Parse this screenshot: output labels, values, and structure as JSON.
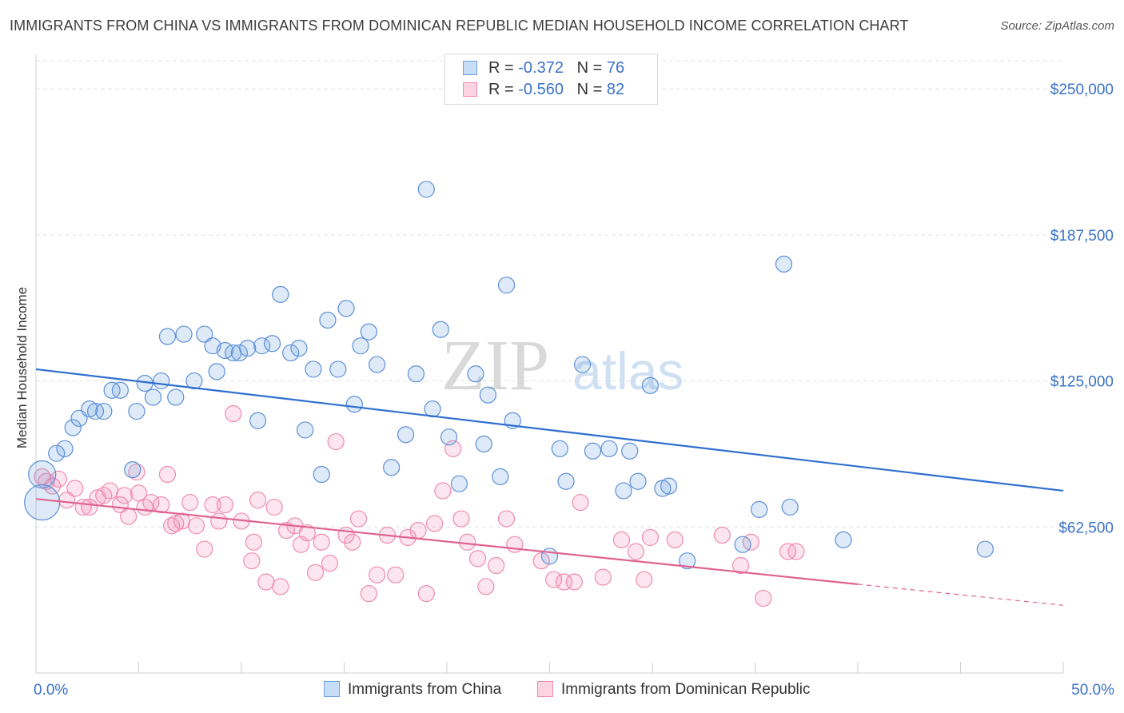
{
  "title": "IMMIGRANTS FROM CHINA VS IMMIGRANTS FROM DOMINICAN REPUBLIC MEDIAN HOUSEHOLD INCOME CORRELATION CHART",
  "source": "Source: ZipAtlas.com",
  "watermark": {
    "zip": "ZIP",
    "atlas": "atlas"
  },
  "legend": {
    "rows": [
      {
        "r_label": "R =",
        "r_value": "-0.372",
        "n_label": "N =",
        "n_value": "76"
      },
      {
        "r_label": "R =",
        "r_value": "-0.560",
        "n_label": "N =",
        "n_value": "82"
      }
    ]
  },
  "chart_data": {
    "type": "scatter",
    "xlabel": "",
    "ylabel": "Median Household Income",
    "xlim": [
      0,
      50
    ],
    "ylim": [
      0,
      262000
    ],
    "x_tick_labels": [
      "0.0%",
      "50.0%"
    ],
    "y_ticks": [
      62500,
      125000,
      187500,
      250000
    ],
    "y_tick_labels": [
      "$62,500",
      "$125,000",
      "$187,500",
      "$250,000"
    ],
    "grid": true,
    "legend_position": "top-center",
    "colors": {
      "china": "#6a9fe0",
      "dominican": "#f08ab0",
      "china_line": "#2f6fd0",
      "dominican_line": "#e0628f",
      "tick_text": "#3a72c8"
    },
    "series": [
      {
        "name": "Immigrants from China",
        "r": -0.372,
        "n": 76,
        "trend": {
          "x": [
            0,
            50
          ],
          "y": [
            130000,
            78000
          ]
        },
        "points": [
          [
            0.3,
            85000,
            17
          ],
          [
            0.3,
            73000,
            22
          ],
          [
            1.0,
            94000,
            10
          ],
          [
            1.4,
            96000,
            10
          ],
          [
            1.8,
            105000,
            10
          ],
          [
            2.1,
            109000,
            10
          ],
          [
            2.6,
            113000,
            10
          ],
          [
            2.9,
            112000,
            10
          ],
          [
            3.3,
            112000,
            10
          ],
          [
            3.7,
            121000,
            10
          ],
          [
            4.1,
            121000,
            10
          ],
          [
            4.7,
            87000,
            10
          ],
          [
            4.9,
            112000,
            10
          ],
          [
            5.3,
            124000,
            10
          ],
          [
            5.7,
            118000,
            10
          ],
          [
            6.1,
            125000,
            10
          ],
          [
            6.4,
            144000,
            10
          ],
          [
            6.8,
            118000,
            10
          ],
          [
            7.2,
            145000,
            10
          ],
          [
            7.7,
            125000,
            10
          ],
          [
            8.2,
            145000,
            10
          ],
          [
            8.6,
            140000,
            10
          ],
          [
            8.8,
            129000,
            10
          ],
          [
            9.2,
            138000,
            10
          ],
          [
            9.6,
            137000,
            10
          ],
          [
            9.9,
            137000,
            10
          ],
          [
            10.3,
            139000,
            10
          ],
          [
            10.8,
            108000,
            10
          ],
          [
            11.0,
            140000,
            10
          ],
          [
            11.5,
            141000,
            10
          ],
          [
            11.9,
            162000,
            10
          ],
          [
            12.4,
            137000,
            10
          ],
          [
            12.8,
            139000,
            10
          ],
          [
            13.1,
            104000,
            10
          ],
          [
            13.5,
            130000,
            10
          ],
          [
            13.9,
            85000,
            10
          ],
          [
            14.2,
            151000,
            10
          ],
          [
            14.7,
            130000,
            10
          ],
          [
            15.1,
            156000,
            10
          ],
          [
            15.5,
            115000,
            10
          ],
          [
            15.8,
            140000,
            10
          ],
          [
            16.2,
            146000,
            10
          ],
          [
            16.6,
            132000,
            10
          ],
          [
            17.3,
            88000,
            10
          ],
          [
            18.0,
            102000,
            10
          ],
          [
            18.5,
            128000,
            10
          ],
          [
            19.0,
            207000,
            10
          ],
          [
            19.3,
            113000,
            10
          ],
          [
            19.7,
            147000,
            10
          ],
          [
            20.1,
            101000,
            10
          ],
          [
            20.6,
            81000,
            10
          ],
          [
            21.4,
            128000,
            10
          ],
          [
            21.8,
            98000,
            10
          ],
          [
            22.0,
            119000,
            10
          ],
          [
            22.6,
            84000,
            10
          ],
          [
            22.9,
            166000,
            10
          ],
          [
            23.2,
            108000,
            10
          ],
          [
            25.0,
            50000,
            10
          ],
          [
            25.5,
            96000,
            10
          ],
          [
            25.8,
            82000,
            10
          ],
          [
            26.6,
            132000,
            10
          ],
          [
            27.1,
            95000,
            10
          ],
          [
            27.9,
            96000,
            10
          ],
          [
            28.6,
            78000,
            10
          ],
          [
            28.9,
            95000,
            10
          ],
          [
            29.3,
            82000,
            10
          ],
          [
            29.9,
            123000,
            10
          ],
          [
            30.5,
            79000,
            10
          ],
          [
            30.8,
            80000,
            10
          ],
          [
            31.7,
            48000,
            10
          ],
          [
            34.4,
            55000,
            10
          ],
          [
            35.2,
            70000,
            10
          ],
          [
            36.4,
            175000,
            10
          ],
          [
            36.7,
            71000,
            10
          ],
          [
            39.3,
            57000,
            10
          ],
          [
            46.2,
            53000,
            10
          ]
        ]
      },
      {
        "name": "Immigrants from Dominican Republic",
        "r": -0.56,
        "n": 82,
        "trend": {
          "x": [
            0,
            40
          ],
          "y": [
            74500,
            38000
          ]
        },
        "trend_dashed": {
          "x": [
            40,
            50
          ],
          "y": [
            38000,
            29000
          ]
        },
        "points": [
          [
            0.3,
            84000,
            10
          ],
          [
            0.5,
            82000,
            10
          ],
          [
            0.8,
            80000,
            10
          ],
          [
            1.1,
            83000,
            10
          ],
          [
            1.5,
            74000,
            10
          ],
          [
            1.9,
            79000,
            10
          ],
          [
            2.3,
            71000,
            10
          ],
          [
            2.6,
            71000,
            10
          ],
          [
            3.0,
            75000,
            10
          ],
          [
            3.3,
            76000,
            10
          ],
          [
            3.6,
            78000,
            10
          ],
          [
            4.1,
            72000,
            10
          ],
          [
            4.3,
            76000,
            10
          ],
          [
            4.5,
            67000,
            10
          ],
          [
            4.9,
            86000,
            10
          ],
          [
            5.0,
            77000,
            10
          ],
          [
            5.3,
            71000,
            10
          ],
          [
            5.6,
            73000,
            10
          ],
          [
            6.1,
            72000,
            10
          ],
          [
            6.4,
            85000,
            10
          ],
          [
            6.6,
            63000,
            10
          ],
          [
            6.8,
            64000,
            10
          ],
          [
            7.1,
            65000,
            10
          ],
          [
            7.5,
            73000,
            10
          ],
          [
            7.8,
            63000,
            10
          ],
          [
            8.2,
            53000,
            10
          ],
          [
            8.6,
            72000,
            10
          ],
          [
            8.9,
            65000,
            10
          ],
          [
            9.2,
            72000,
            10
          ],
          [
            9.6,
            111000,
            10
          ],
          [
            10.0,
            65000,
            10
          ],
          [
            10.5,
            48000,
            10
          ],
          [
            10.6,
            56000,
            10
          ],
          [
            10.8,
            74000,
            10
          ],
          [
            11.2,
            39000,
            10
          ],
          [
            11.6,
            71000,
            10
          ],
          [
            11.9,
            37000,
            10
          ],
          [
            12.2,
            61000,
            10
          ],
          [
            12.6,
            63000,
            10
          ],
          [
            12.9,
            55000,
            10
          ],
          [
            13.2,
            60000,
            10
          ],
          [
            13.6,
            43000,
            10
          ],
          [
            13.9,
            56000,
            10
          ],
          [
            14.3,
            47000,
            10
          ],
          [
            14.6,
            99000,
            10
          ],
          [
            15.1,
            59000,
            10
          ],
          [
            15.4,
            56000,
            10
          ],
          [
            15.7,
            66000,
            10
          ],
          [
            16.2,
            34000,
            10
          ],
          [
            16.6,
            42000,
            10
          ],
          [
            17.1,
            59000,
            10
          ],
          [
            17.5,
            42000,
            10
          ],
          [
            18.1,
            58000,
            10
          ],
          [
            18.6,
            61000,
            10
          ],
          [
            19.0,
            34000,
            10
          ],
          [
            19.4,
            64000,
            10
          ],
          [
            19.8,
            78000,
            10
          ],
          [
            20.3,
            96000,
            10
          ],
          [
            20.7,
            66000,
            10
          ],
          [
            21.0,
            56000,
            10
          ],
          [
            21.5,
            49000,
            10
          ],
          [
            21.9,
            37000,
            10
          ],
          [
            22.4,
            46000,
            10
          ],
          [
            22.9,
            66000,
            10
          ],
          [
            23.3,
            55000,
            10
          ],
          [
            24.6,
            48000,
            10
          ],
          [
            25.2,
            40000,
            10
          ],
          [
            25.7,
            39000,
            10
          ],
          [
            26.2,
            39000,
            10
          ],
          [
            26.5,
            73000,
            10
          ],
          [
            27.6,
            41000,
            10
          ],
          [
            28.5,
            57000,
            10
          ],
          [
            29.2,
            52000,
            10
          ],
          [
            29.6,
            40000,
            10
          ],
          [
            29.9,
            58000,
            10
          ],
          [
            31.1,
            57000,
            10
          ],
          [
            33.4,
            59000,
            10
          ],
          [
            34.3,
            46000,
            10
          ],
          [
            34.8,
            56000,
            10
          ],
          [
            35.4,
            32000,
            10
          ],
          [
            36.6,
            52000,
            10
          ],
          [
            37.0,
            52000,
            10
          ]
        ]
      }
    ]
  }
}
